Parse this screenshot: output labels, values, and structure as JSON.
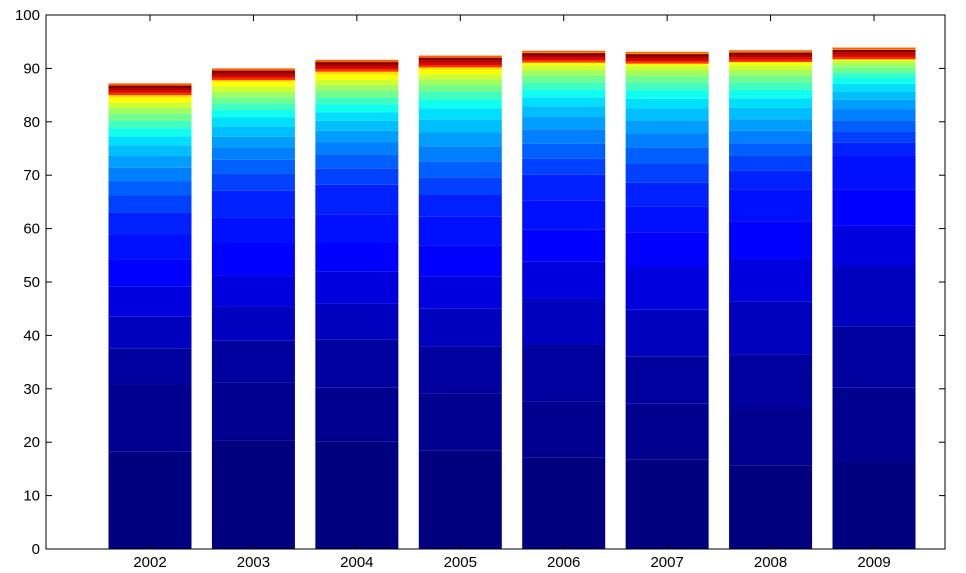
{
  "chart_data": {
    "type": "bar",
    "stacked": true,
    "title": "",
    "xlabel": "",
    "ylabel": "",
    "categories": [
      "2002",
      "2003",
      "2004",
      "2005",
      "2006",
      "2007",
      "2008",
      "2009"
    ],
    "ylim": [
      0,
      100
    ],
    "yticks": [
      0,
      10,
      20,
      30,
      40,
      50,
      60,
      70,
      80,
      90,
      100
    ],
    "grid": false,
    "legend": "none",
    "colormap": "jet",
    "stack_tops": [
      [
        18.2,
        30.8,
        37.6,
        43.6,
        49.2,
        54.2,
        58.8,
        63.0,
        66.2,
        68.9,
        71.4,
        73.6,
        75.6,
        77.3,
        78.8,
        80.2,
        81.5,
        82.6,
        83.6,
        84.5,
        85.3,
        86.0,
        86.6,
        87.2
      ],
      [
        20.3,
        31.2,
        39.0,
        45.4,
        51.3,
        57.3,
        62.1,
        67.1,
        70.3,
        72.9,
        75.2,
        77.2,
        79.1,
        80.8,
        82.2,
        83.5,
        84.6,
        85.6,
        86.6,
        87.5,
        88.2,
        88.9,
        89.5,
        90.0
      ],
      [
        20.1,
        30.2,
        39.2,
        45.9,
        52.0,
        57.4,
        62.7,
        68.2,
        71.3,
        73.9,
        76.2,
        78.3,
        80.2,
        81.8,
        83.3,
        84.6,
        85.8,
        86.9,
        87.9,
        88.8,
        89.6,
        90.4,
        91.0,
        91.6
      ],
      [
        18.5,
        29.1,
        37.9,
        45.0,
        51.1,
        56.9,
        62.2,
        66.4,
        69.6,
        72.6,
        75.4,
        78.0,
        80.4,
        82.5,
        84.2,
        85.6,
        86.8,
        87.9,
        88.9,
        89.8,
        90.6,
        91.3,
        91.9,
        92.4
      ],
      [
        17.1,
        27.6,
        38.3,
        46.9,
        53.8,
        59.8,
        65.3,
        70.1,
        73.1,
        75.9,
        78.6,
        80.9,
        82.9,
        84.6,
        86.1,
        87.4,
        88.6,
        89.6,
        90.5,
        91.3,
        92.0,
        92.6,
        93.0,
        93.3
      ],
      [
        16.7,
        27.2,
        36.1,
        44.8,
        52.9,
        59.3,
        64.2,
        68.6,
        72.1,
        75.1,
        77.8,
        80.3,
        82.5,
        84.3,
        85.9,
        87.3,
        88.5,
        89.6,
        90.5,
        91.3,
        92.0,
        92.5,
        92.9,
        93.1
      ],
      [
        15.7,
        26.4,
        36.5,
        46.4,
        54.3,
        61.4,
        67.3,
        70.8,
        73.6,
        76.0,
        78.3,
        80.5,
        82.6,
        84.4,
        86.0,
        87.4,
        88.6,
        89.7,
        90.6,
        91.4,
        92.1,
        92.7,
        93.1,
        93.4
      ],
      [
        16.2,
        30.2,
        41.7,
        53.0,
        60.6,
        67.3,
        73.7,
        76.1,
        78.2,
        80.3,
        82.3,
        84.1,
        85.7,
        87.1,
        88.3,
        89.3,
        90.2,
        91.0,
        91.7,
        92.3,
        92.8,
        93.2,
        93.6,
        93.9
      ]
    ],
    "segment_colors": [
      "#00007f",
      "#00008f",
      "#00009f",
      "#0000bf",
      "#0000df",
      "#0000ff",
      "#0010ff",
      "#0020ff",
      "#0040ff",
      "#0060ff",
      "#0080ff",
      "#009fff",
      "#00bfff",
      "#00dfff",
      "#10ffef",
      "#40ffbf",
      "#70ff8f",
      "#9fff60",
      "#cfff30",
      "#ffff00",
      "#ffdf00",
      "#ffbf00",
      "#ff8f00",
      "#ff5f00",
      "#ff2f00",
      "#df0000",
      "#af0000",
      "#7f0000"
    ]
  }
}
